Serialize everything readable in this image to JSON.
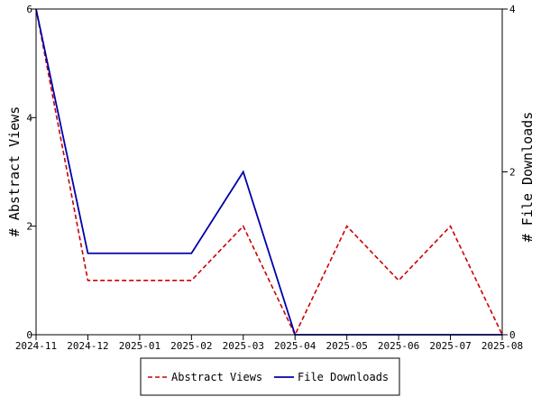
{
  "chart_data": {
    "type": "line",
    "x": [
      "2024-11",
      "2024-12",
      "2025-01",
      "2025-02",
      "2025-03",
      "2025-04",
      "2025-05",
      "2025-06",
      "2025-07",
      "2025-08"
    ],
    "series": [
      {
        "name": "Abstract Views",
        "axis": "left",
        "color": "#cc0000",
        "dashed": true,
        "points": [
          {
            "x": "2024-11",
            "y": 6
          },
          {
            "x": "2024-12",
            "y": 1
          },
          {
            "x": "2025-02",
            "y": 1
          },
          {
            "x": "2025-03",
            "y": 2
          },
          {
            "x": "2025-04",
            "y": 0
          },
          {
            "x": "2025-05",
            "y": 2
          },
          {
            "x": "2025-06",
            "y": 1
          },
          {
            "x": "2025-07",
            "y": 2
          },
          {
            "x": "2025-08",
            "y": 0
          }
        ]
      },
      {
        "name": "File Downloads",
        "axis": "right",
        "color": "#0000aa",
        "dashed": false,
        "points": [
          {
            "x": "2024-11",
            "y": 4
          },
          {
            "x": "2024-12",
            "y": 1
          },
          {
            "x": "2025-02",
            "y": 1
          },
          {
            "x": "2025-03",
            "y": 2
          },
          {
            "x": "2025-04",
            "y": 0
          },
          {
            "x": "2025-05",
            "y": 0
          },
          {
            "x": "2025-06",
            "y": 0
          },
          {
            "x": "2025-07",
            "y": 0
          },
          {
            "x": "2025-08",
            "y": 0
          }
        ]
      }
    ],
    "ylabel_left": "# Abstract Views",
    "ylabel_right": "# File Downloads",
    "ylim_left": [
      0,
      6
    ],
    "ylim_right": [
      0,
      4
    ],
    "yticks_left": [
      0,
      2,
      4,
      6
    ],
    "yticks_right": [
      0,
      2,
      4
    ],
    "grid": false,
    "legend_position": "bottom"
  }
}
